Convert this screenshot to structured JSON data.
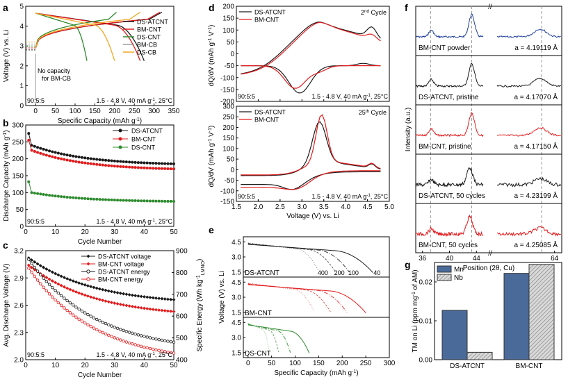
{
  "colors": {
    "black": "#1a1a1a",
    "red": "#e31a1c",
    "green": "#2e8b2e",
    "gray": "#9a9a9a",
    "orange": "#f5a623",
    "blue": "#1f3f9a",
    "mn_fill": "#4a6a9a",
    "nb_fill": "#d9d9d9"
  },
  "chart_data": [
    {
      "panel": "a",
      "type": "line",
      "xlabel": "Specific Capacity (mAh g",
      "xlabel_sup": "-1",
      "xlabel_end": ")",
      "ylabel": "Voltage (V) vs. Li",
      "xlim": [
        -25,
        350
      ],
      "ylim": [
        0,
        5
      ],
      "xticks": [
        "0",
        "50",
        "100",
        "150",
        "200",
        "250",
        "300",
        "350"
      ],
      "yticks": [
        "0",
        "1",
        "2",
        "3",
        "4",
        "5"
      ],
      "legend": [
        "DS-ATCNT",
        "BM-CNT",
        "DS-CNT",
        "BM-CB",
        "DS-CB"
      ],
      "annotation_1": "No capacity",
      "annotation_2": "for BM-CB",
      "note_left": "90:5:5",
      "note_right": "1.5 - 4.8 V, 40 mA g",
      "note_right_sup": "-1",
      "note_right_end": ", 25°C",
      "series": [
        {
          "name": "DS-ATCNT",
          "charge_end": 320,
          "discharge_end": 275
        },
        {
          "name": "BM-CNT",
          "charge_end": 315,
          "discharge_end": 265
        },
        {
          "name": "DS-CNT",
          "charge_end": 205,
          "discharge_end": 130
        },
        {
          "name": "BM-CB",
          "charge_end": 0,
          "discharge_end": 0
        },
        {
          "name": "DS-CB",
          "charge_end": 265,
          "discharge_end": 200
        }
      ]
    },
    {
      "panel": "b",
      "type": "line",
      "xlabel": "Cycle Number",
      "ylabel": "Discharge Capacity (mAh g",
      "ylabel_sup": "-1",
      "ylabel_end": ")",
      "xlim": [
        0,
        50
      ],
      "ylim": [
        0,
        300
      ],
      "xticks": [
        "0",
        "10",
        "20",
        "30",
        "40",
        "50"
      ],
      "yticks": [
        "0",
        "50",
        "100",
        "150",
        "200",
        "250",
        "300"
      ],
      "legend": [
        "DS-ATCNT",
        "BM-CNT",
        "DS-CNT"
      ],
      "note_left": "90:5:5",
      "note_right": "1.5 - 4.8 V, 40 mA g",
      "note_right_sup": "-1",
      "note_right_end": ", 25°C",
      "series": [
        {
          "name": "DS-ATCNT",
          "first": 275,
          "start": 240,
          "end": 185
        },
        {
          "name": "BM-CNT",
          "first": 255,
          "start": 225,
          "end": 170
        },
        {
          "name": "DS-CNT",
          "first": 132,
          "start": 100,
          "end": 74
        }
      ]
    },
    {
      "panel": "c",
      "type": "line",
      "xlabel": "Cycle Number",
      "ylabel": "Avg. Discharge Voltage (V)",
      "ylabel2": "Specific Energy (Wh kg",
      "ylabel2_sup": "-1",
      "ylabel2_sub": "LMNO",
      "ylabel2_end": ")",
      "xlim": [
        0,
        50
      ],
      "ylim": [
        2.0,
        3.2
      ],
      "y2lim": [
        400,
        900
      ],
      "xticks": [
        "0",
        "10",
        "20",
        "30",
        "40",
        "50"
      ],
      "yticks": [
        "2.0",
        "2.3",
        "2.6",
        "2.9",
        "3.2"
      ],
      "y2ticks": [
        "400",
        "500",
        "600",
        "700",
        "800",
        "900"
      ],
      "legend": [
        "DS-ATCNT voltage",
        "BM-CNT voltage",
        "DS-ATCNT energy",
        "BM-CNT energy"
      ],
      "note_left": "90:5:5",
      "note_right": "1.5 - 4.8 V, 40 mA g",
      "note_right_sup": "-1",
      "note_right_end": ", 25°C",
      "series": [
        {
          "name": "DS-ATCNT voltage",
          "start": 3.12,
          "end": 2.66
        },
        {
          "name": "BM-CNT voltage",
          "start": 3.04,
          "end": 2.53
        },
        {
          "name": "DS-ATCNT energy",
          "start": 860,
          "end": 480
        },
        {
          "name": "BM-CNT energy",
          "start": 820,
          "end": 430
        }
      ]
    },
    {
      "panel": "d",
      "type": "line",
      "xlabel": "Voltage (V) vs. Li",
      "ylabel": "dQ/dV (mAh g",
      "ylabel_sup": "-1",
      "ylabel_mid": " V",
      "ylabel_sup2": "-1",
      "ylabel_end": ")",
      "xlim": [
        1.5,
        5.0
      ],
      "xticks": [
        "1.5",
        "2.0",
        "2.5",
        "3.0",
        "3.5",
        "4.0",
        "4.5",
        "5.0"
      ],
      "top": {
        "title_num": "2",
        "title_sup": "nd",
        "title_end": " Cycle",
        "ylim": [
          -200,
          200
        ],
        "yticks": [
          "200",
          "150",
          "100",
          "50",
          "0",
          "-50",
          "-100",
          "-150",
          "-200"
        ],
        "legend": [
          "DS-ATCNT",
          "BM-CNT"
        ],
        "note_left": "90:5:5",
        "note_right": "1.5 - 4.8 V, 40 mA g",
        "note_right_sup": "-1",
        "note_right_end": ", 25°C"
      },
      "bottom": {
        "title_num": "25",
        "title_sup": "th",
        "title_end": " Cycle",
        "ylim": [
          -150,
          300
        ],
        "yticks": [
          "300",
          "250",
          "200",
          "150",
          "100",
          "50",
          "0",
          "-50",
          "-100",
          "-150"
        ],
        "legend": [
          "DS-ATCNT",
          "BM-CNT"
        ],
        "note_left": "90:5:5",
        "note_right": "1.5 - 4.8 V, 40 mA g",
        "note_right_sup": "-1",
        "note_right_end": ", 25°C"
      }
    },
    {
      "panel": "e",
      "type": "line",
      "xlabel": "Specific Capacity (mAh g",
      "xlabel_sup": "-1",
      "xlabel_end": ")",
      "ylabel": "Voltage (V) vs. Li",
      "xlim": [
        -10,
        300
      ],
      "xticks": [
        "0",
        "50",
        "100",
        "150",
        "200",
        "250",
        "300"
      ],
      "yticks": [
        "4.5",
        "3.0",
        "1.5"
      ],
      "subpanels": [
        {
          "name": "DS-ATCNT",
          "rates": [
            "400",
            "200",
            "100",
            "40"
          ],
          "caps": [
            150,
            185,
            215,
            265
          ]
        },
        {
          "name": "BM-CNT",
          "rates": [],
          "caps": [
            140,
            175,
            210,
            250
          ]
        },
        {
          "name": "DS-CNT",
          "rates": [],
          "caps": [
            45,
            65,
            90,
            130
          ]
        }
      ]
    },
    {
      "panel": "f",
      "type": "line",
      "xlabel": "Position (2θ, Cu)",
      "ylabel": "Intensity (a.u.)",
      "xticks": [
        "36",
        "40",
        "44",
        "64"
      ],
      "axis_break": "//",
      "traces": [
        {
          "name": "BM-CNT powder",
          "a": "a = 4.19119 Å"
        },
        {
          "name": "DS-ATCNT, pristine",
          "a": "a = 4.17070 Å"
        },
        {
          "name": "BM-CNT, pristine",
          "a": "a = 4.17150 Å"
        },
        {
          "name": "DS-ATCNT, 50 cycles",
          "a": "a = 4.23199 Å"
        },
        {
          "name": "BM-CNT, 50 cycles",
          "a": "a = 4.25085 Å"
        }
      ]
    },
    {
      "panel": "g",
      "type": "bar",
      "ylabel": "TM on Li (ppm mg",
      "ylabel_sup": "-1",
      "ylabel_end": " of AM)",
      "categories": [
        "DS-ATCNT",
        "BM-CNT"
      ],
      "series": [
        {
          "name": "Mn",
          "values": [
            0.0127,
            0.0222
          ]
        },
        {
          "name": "Nb",
          "values": [
            0.0019,
            0.0245
          ]
        }
      ],
      "ylim": [
        0,
        0.025
      ],
      "yticks": [
        "0.00",
        "0.01",
        "0.02"
      ]
    }
  ]
}
